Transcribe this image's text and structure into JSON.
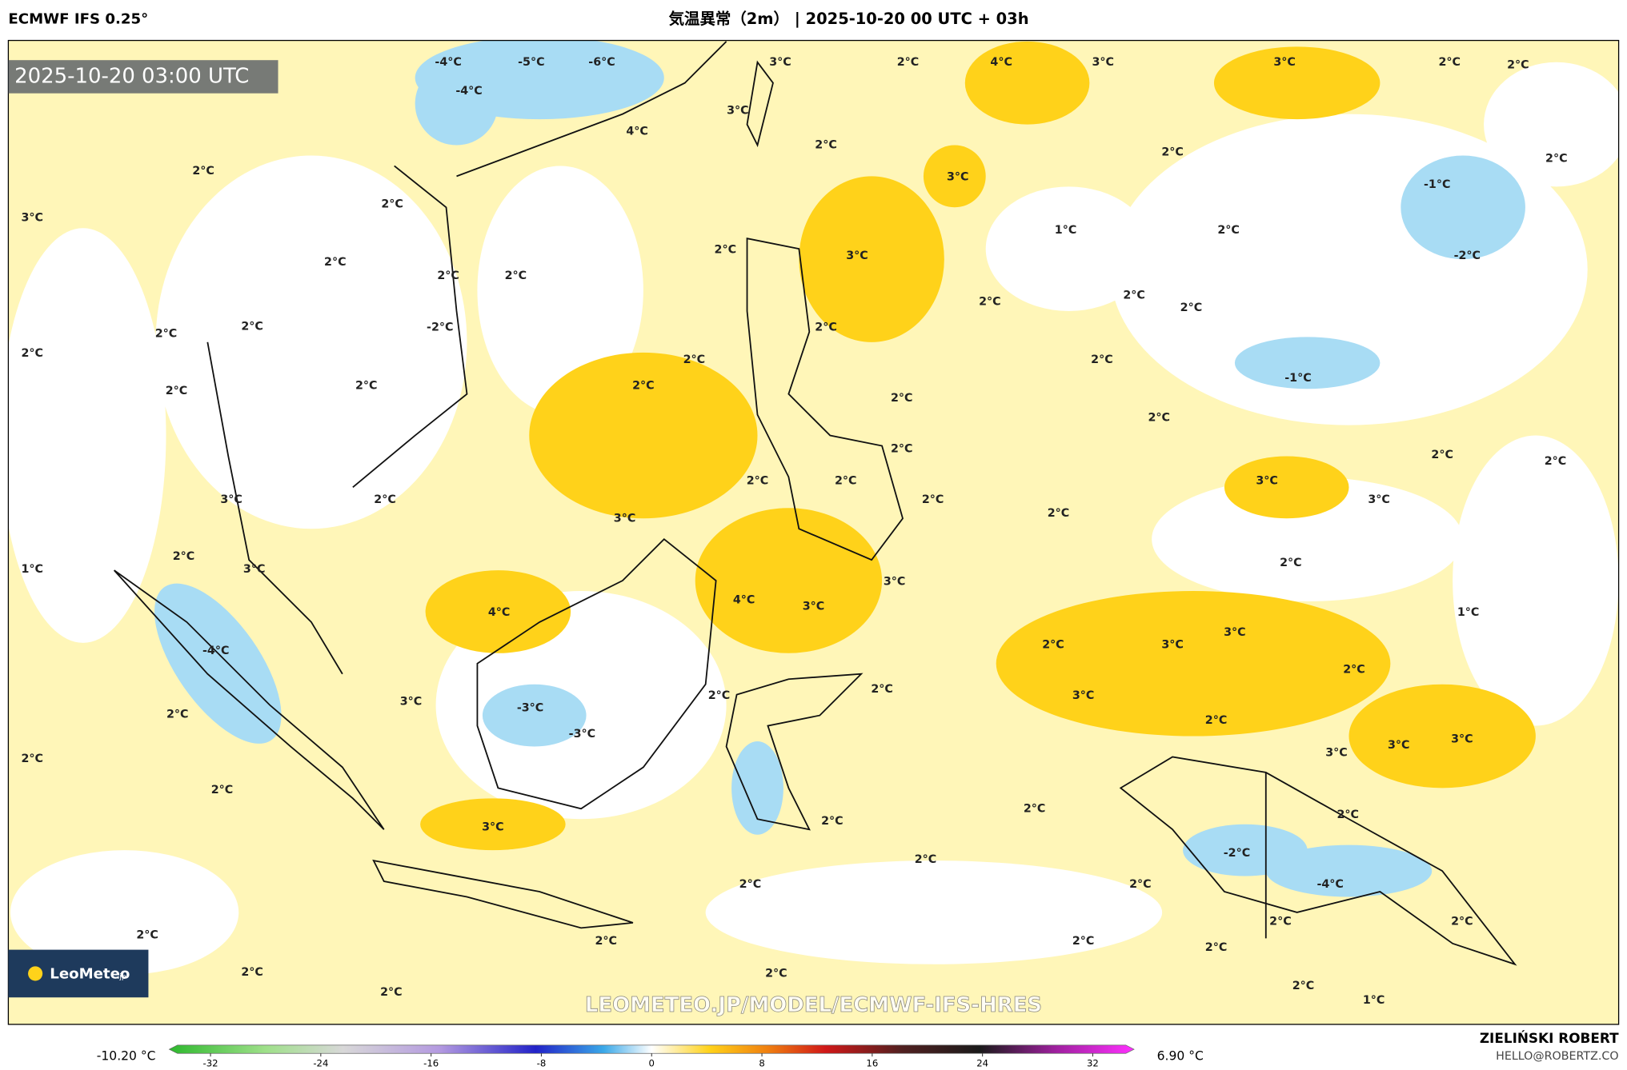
{
  "header": {
    "model": "ECMWF IFS 0.25°",
    "title": "気温異常（2m） | 2025-10-20 00 UTC + 03h"
  },
  "map": {
    "timestamp": "2025-10-20 03:00 UTC",
    "watermark": "LEOMETEO.JP/MODEL/ECMWF-IFS-HRES",
    "logo": "LeoMeteo",
    "logo_suffix": ".jp",
    "labels": [
      "-5°C",
      "-6°C",
      "-4°C",
      "-4°C",
      "4°C",
      "3°C",
      "3°C",
      "2°C",
      "4°C",
      "3°C",
      "3°C",
      "2°C",
      "2°C",
      "2°C",
      "2°C",
      "2°C",
      "3°C",
      "-1°C",
      "1°C",
      "2°C",
      "-2°C",
      "3°C",
      "2°C",
      "2°C",
      "2°C",
      "3°C",
      "2°C",
      "2°C",
      "2°C",
      "2°C",
      "2°C",
      "2°C",
      "2°C",
      "2°C",
      "-2°C",
      "2°C",
      "2°C",
      "2°C",
      "2°C",
      "-1°C",
      "2°C",
      "2°C",
      "2°C",
      "2°C",
      "2°C",
      "2°C",
      "2°C",
      "2°C",
      "2°C",
      "2°C",
      "3°C",
      "2°C",
      "3°C",
      "2°C",
      "3°C",
      "2°C",
      "3°C",
      "2°C",
      "1°C",
      "3°C",
      "2°C",
      "3°C",
      "4°C",
      "3°C",
      "4°C",
      "1°C",
      "-4°C",
      "3°C",
      "2°C",
      "3°C",
      "2°C",
      "2°C",
      "2°C",
      "3°C",
      "3°C",
      "-3°C",
      "2°C",
      "-3°C",
      "2°C",
      "3°C",
      "3°C",
      "3°C",
      "2°C",
      "2°C",
      "2°C",
      "2°C",
      "3°C",
      "2°C",
      "-2°C",
      "2°C",
      "2°C",
      "2°C",
      "-4°C",
      "2°C",
      "2°C",
      "2°C",
      "2°C",
      "2°C",
      "2°C",
      "2°C",
      "2°C",
      "2°C",
      "2°C",
      "1°C"
    ]
  },
  "colorbar": {
    "min_label": "-10.20 °C",
    "max_label": "6.90 °C",
    "lim": [
      -35,
      35
    ],
    "ticks": [
      -32,
      -24,
      -16,
      -8,
      0,
      8,
      16,
      24,
      32
    ]
  },
  "credit": {
    "author": "ZIELIŃSKI ROBERT",
    "email": "HELLO@ROBERTZ.CO"
  }
}
